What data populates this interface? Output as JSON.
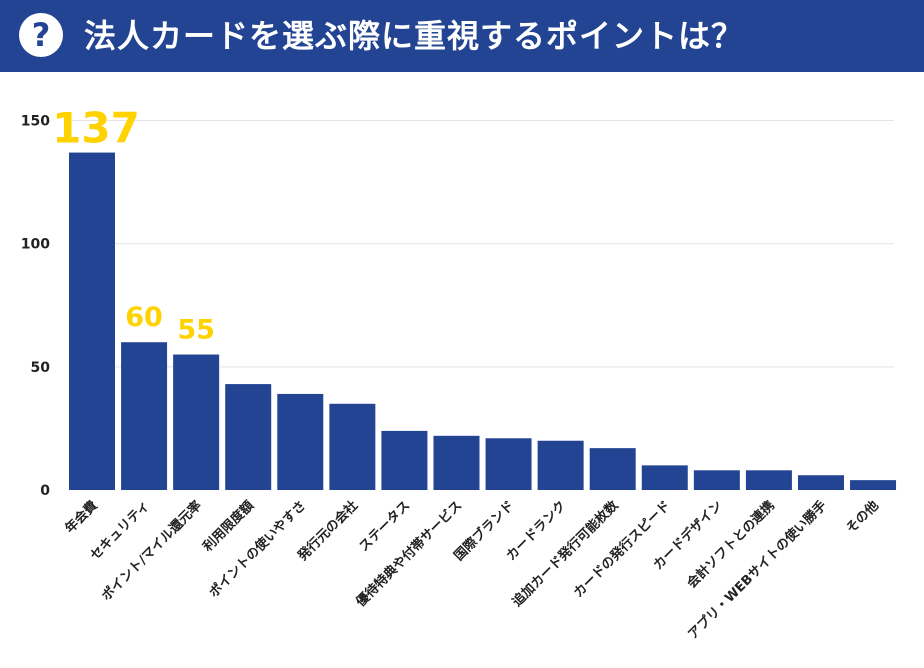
{
  "header": {
    "icon": "question-icon",
    "icon_glyph": "?",
    "title": "法人カードを選ぶ際に重視するポイントは？"
  },
  "colors": {
    "header_bg": "#234493",
    "bar": "#234493",
    "highlight_label": "#FFD200",
    "grid": "#e3e3e3"
  },
  "chart_data": {
    "type": "bar",
    "categories": [
      "年会費",
      "セキュリティ",
      "ポイント/マイル還元率",
      "利用限度額",
      "ポイントの使いやすさ",
      "発行元の会社",
      "ステータス",
      "優待特典や付帯サービス",
      "国際ブランド",
      "カードランク",
      "追加カード発行可能枚数",
      "カードの発行スピード",
      "カードデザイン",
      "会計ソフトとの連携",
      "アプリ・WEBサイトの使い勝手",
      "その他"
    ],
    "values": [
      137,
      60,
      55,
      43,
      39,
      35,
      24,
      22,
      21,
      20,
      17,
      10,
      8,
      8,
      6,
      4
    ],
    "data_labels": [
      {
        "index": 0,
        "text": "137"
      },
      {
        "index": 1,
        "text": "60"
      },
      {
        "index": 2,
        "text": "55"
      }
    ],
    "yticks": [
      0,
      50,
      100,
      150
    ],
    "ylim": [
      0,
      150
    ],
    "grid": true,
    "legend": "none",
    "xlabel_rotation": -45
  }
}
